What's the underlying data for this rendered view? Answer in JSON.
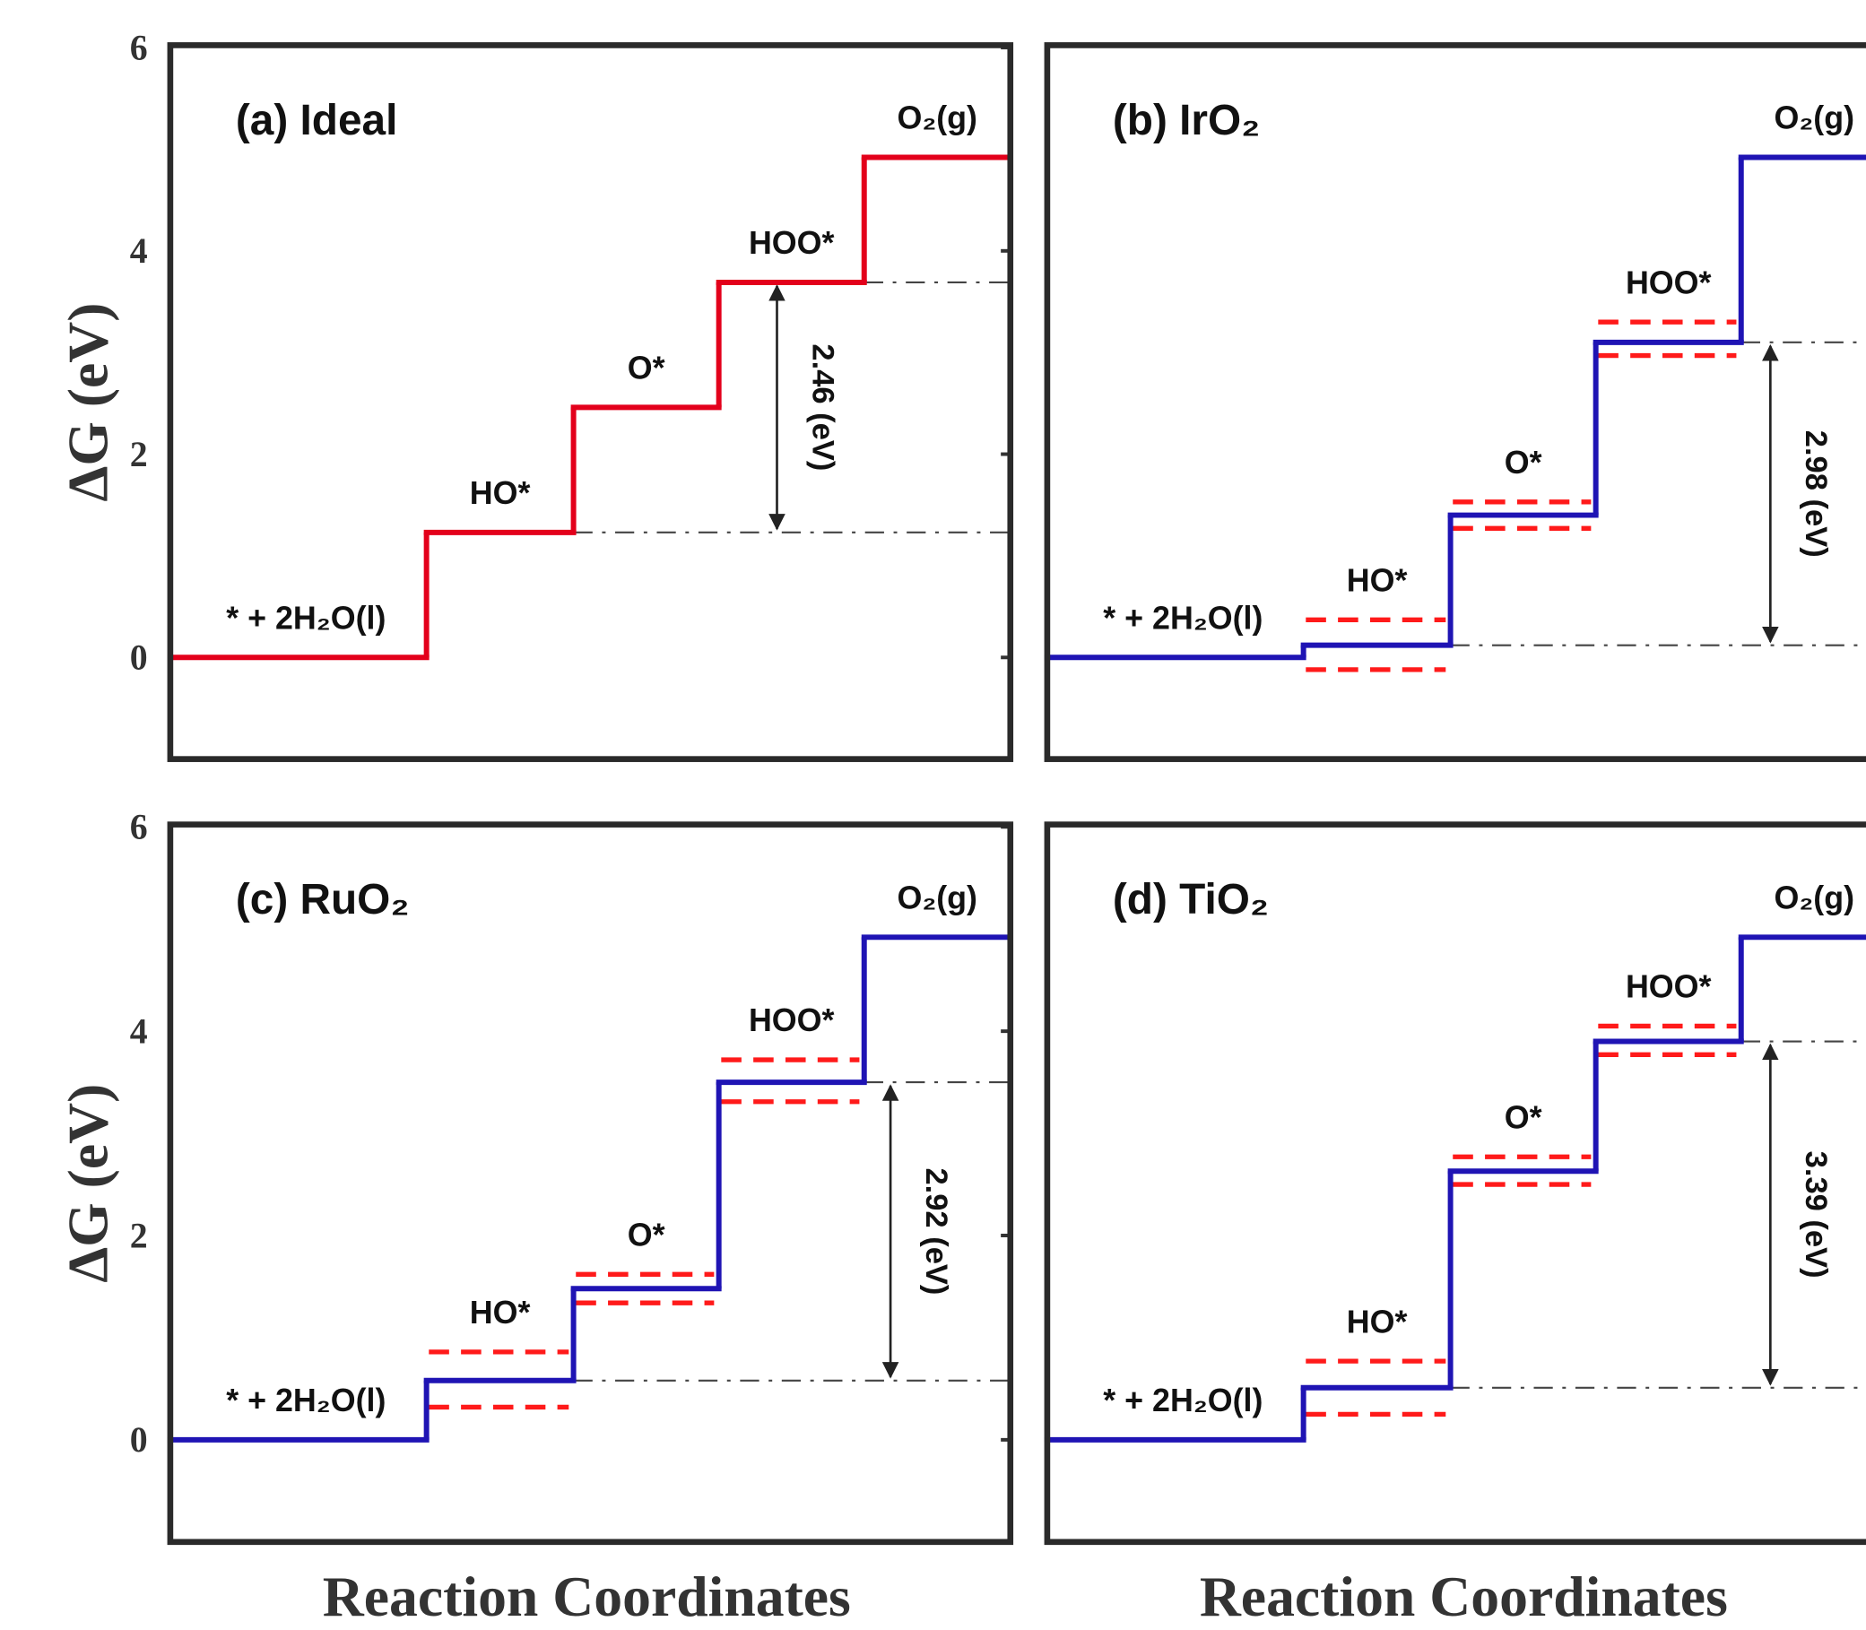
{
  "chart_data": [
    {
      "type": "step",
      "title": "(a) Ideal",
      "ylabel": "ΔG (eV)",
      "categories": [
        "* + 2H₂O(l)",
        "HO*",
        "O*",
        "HOO*",
        "O₂(g)"
      ],
      "values": [
        0,
        1.23,
        2.46,
        3.69,
        4.92
      ],
      "color": "#e3001b",
      "arrow_label": "2.46 (eV)",
      "ylim": [
        -1,
        6
      ],
      "yticks": [
        0,
        2,
        4,
        6
      ]
    },
    {
      "type": "step",
      "title": "(b) IrO₂",
      "categories": [
        "* + 2H₂O(l)",
        "HO*",
        "O*",
        "HOO*",
        "O₂(g)"
      ],
      "values": [
        0,
        0.12,
        1.4,
        3.1,
        4.92
      ],
      "color": "#1f14b4",
      "band_upper": [
        null,
        0.37,
        1.53,
        3.3,
        null
      ],
      "band_lower": [
        null,
        -0.12,
        1.27,
        2.97,
        null
      ],
      "band_color": "#ff1a1a",
      "arrow_label": "2.98 (eV)",
      "ylim": [
        -1,
        6
      ]
    },
    {
      "type": "step",
      "title": "(c) RuO₂",
      "ylabel": "ΔG (eV)",
      "xlabel": "Reaction Coordinates",
      "categories": [
        "* + 2H₂O(l)",
        "HO*",
        "O*",
        "HOO*",
        "O₂(g)"
      ],
      "values": [
        0,
        0.58,
        1.48,
        3.5,
        4.92
      ],
      "color": "#1f14b4",
      "band_upper": [
        null,
        0.86,
        1.62,
        3.72,
        null
      ],
      "band_lower": [
        null,
        0.32,
        1.34,
        3.31,
        null
      ],
      "band_color": "#ff1a1a",
      "arrow_label": "2.92 (eV)",
      "ylim": [
        -1,
        6
      ],
      "yticks": [
        0,
        2,
        4,
        6
      ]
    },
    {
      "type": "step",
      "title": "(d) TiO₂",
      "xlabel": "Reaction Coordinates",
      "categories": [
        "* + 2H₂O(l)",
        "HO*",
        "O*",
        "HOO*",
        "O₂(g)"
      ],
      "values": [
        0,
        0.51,
        2.63,
        3.9,
        4.92
      ],
      "color": "#1f14b4",
      "band_upper": [
        null,
        0.77,
        2.77,
        4.05,
        null
      ],
      "band_lower": [
        null,
        0.25,
        2.5,
        3.77,
        null
      ],
      "band_color": "#ff1a1a",
      "arrow_label": "3.39 (eV)",
      "ylim": [
        -1,
        6
      ]
    }
  ]
}
